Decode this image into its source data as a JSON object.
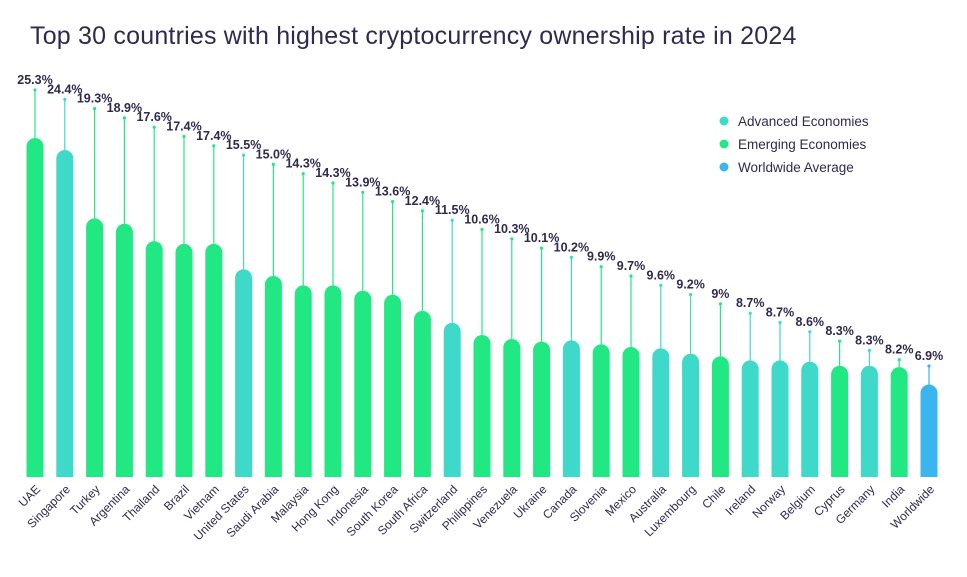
{
  "chart_data": {
    "type": "bar",
    "title": "Top 30 countries with highest cryptocurrency ownership rate in 2024",
    "xlabel": "",
    "ylabel": "",
    "ylim": [
      0,
      25.3
    ],
    "grid": false,
    "legend_position": "top-right",
    "categories": [
      "UAE",
      "Singapore",
      "Turkey",
      "Argentina",
      "Thailand",
      "Brazil",
      "Vietnam",
      "United States",
      "Saudi Arabia",
      "Malaysia",
      "Hong Kong",
      "Indonesia",
      "South Korea",
      "South Africa",
      "Switzerland",
      "Philippines",
      "Venezuela",
      "Ukraine",
      "Canada",
      "Slovenia",
      "Mexico",
      "Australia",
      "Luxembourg",
      "Chile",
      "Ireland",
      "Norway",
      "Belgium",
      "Cyprus",
      "Germany",
      "India",
      "Worldwide"
    ],
    "values": [
      25.3,
      24.4,
      19.3,
      18.9,
      17.6,
      17.4,
      17.4,
      15.5,
      15.0,
      14.3,
      14.3,
      13.9,
      13.6,
      12.4,
      11.5,
      10.6,
      10.3,
      10.1,
      10.2,
      9.9,
      9.7,
      9.6,
      9.2,
      9,
      8.7,
      8.7,
      8.6,
      8.3,
      8.3,
      8.2,
      6.9
    ],
    "value_labels": [
      "25.3%",
      "24.4%",
      "19.3%",
      "18.9%",
      "17.6%",
      "17.4%",
      "17.4%",
      "15.5%",
      "15.0%",
      "14.3%",
      "14.3%",
      "13.9%",
      "13.6%",
      "12.4%",
      "11.5%",
      "10.6%",
      "10.3%",
      "10.1%",
      "10.2%",
      "9.9%",
      "9.7%",
      "9.6%",
      "9.2%",
      "9%",
      "8.7%",
      "8.7%",
      "8.6%",
      "8.3%",
      "8.3%",
      "8.2%",
      "6.9%"
    ],
    "groups": [
      "Emerging Economies",
      "Advanced Economies",
      "Emerging Economies",
      "Emerging Economies",
      "Emerging Economies",
      "Emerging Economies",
      "Emerging Economies",
      "Advanced Economies",
      "Emerging Economies",
      "Emerging Economies",
      "Emerging Economies",
      "Emerging Economies",
      "Emerging Economies",
      "Emerging Economies",
      "Advanced Economies",
      "Emerging Economies",
      "Emerging Economies",
      "Emerging Economies",
      "Advanced Economies",
      "Emerging Economies",
      "Emerging Economies",
      "Advanced Economies",
      "Advanced Economies",
      "Emerging Economies",
      "Advanced Economies",
      "Advanced Economies",
      "Advanced Economies",
      "Emerging Economies",
      "Advanced Economies",
      "Emerging Economies",
      "Worldwide Average"
    ],
    "legend": [
      {
        "name": "Advanced Economies",
        "color": "#3fd9c9"
      },
      {
        "name": "Emerging Economies",
        "color": "#22e884"
      },
      {
        "name": "Worldwide Average",
        "color": "#3bb5ef"
      }
    ]
  }
}
